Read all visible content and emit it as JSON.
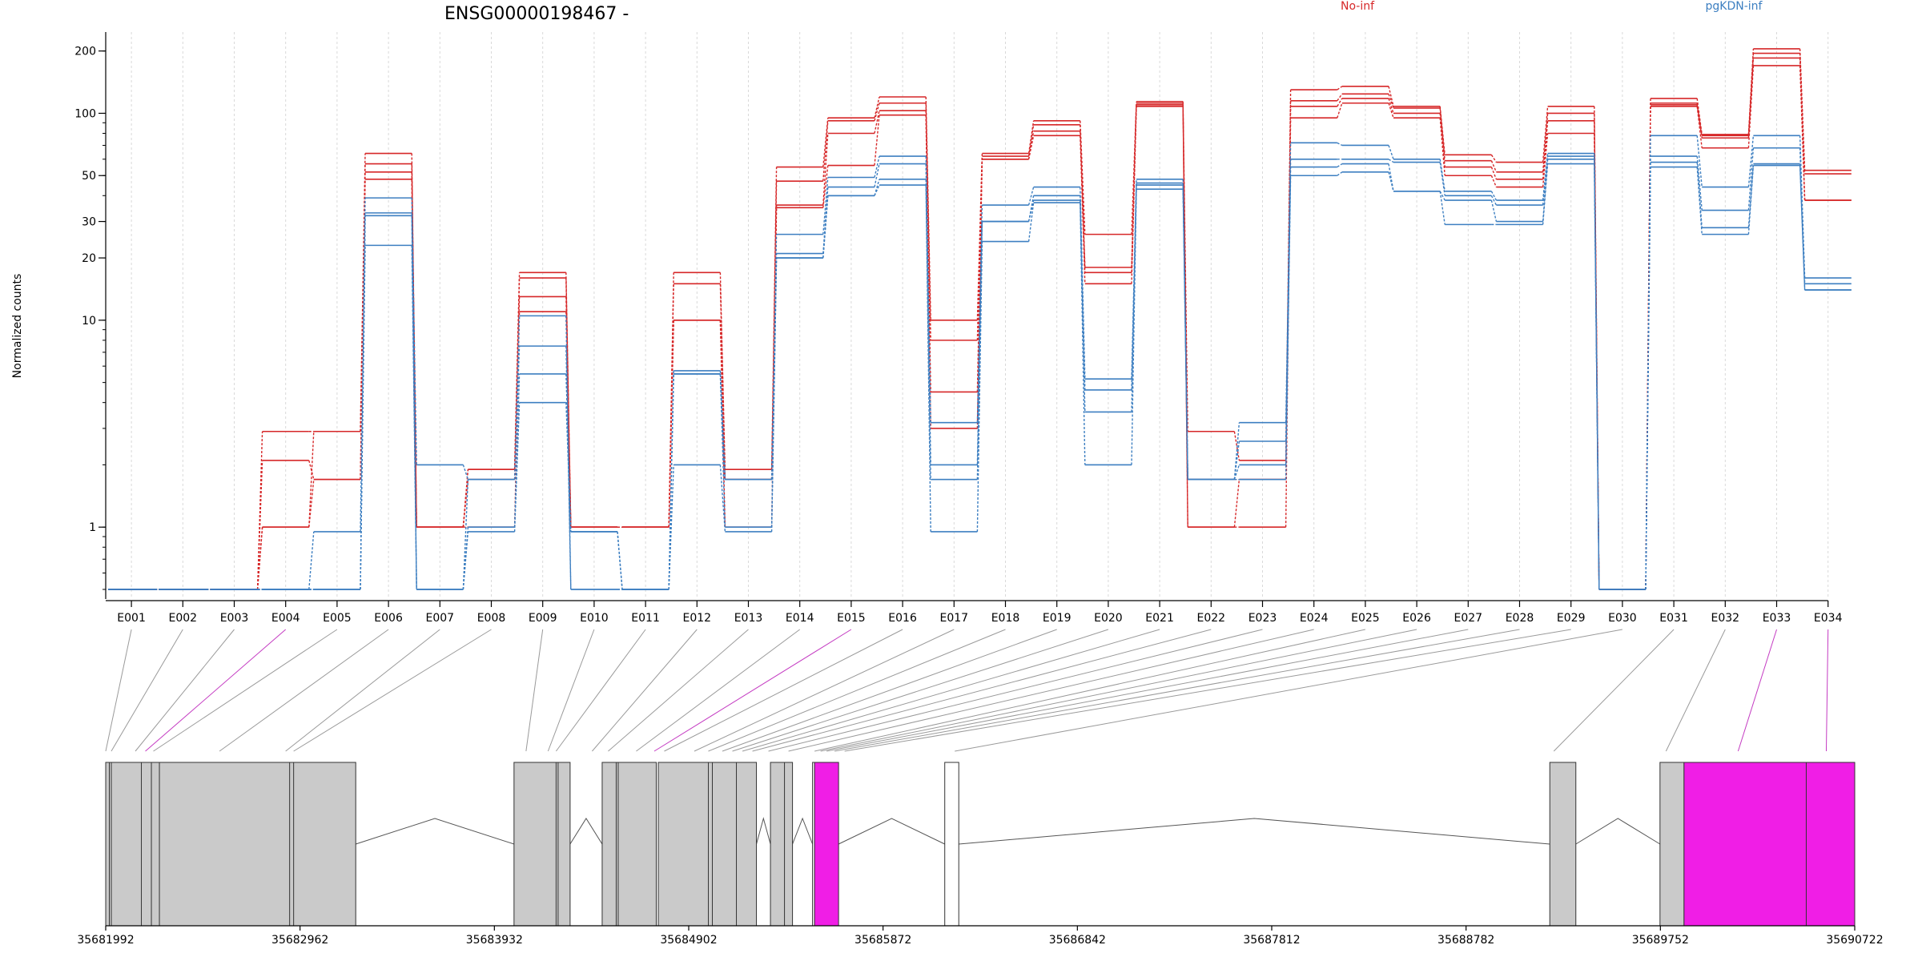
{
  "chart_data": {
    "type": "line",
    "title": "ENSG00000198467 -",
    "ylabel": "Normalized counts",
    "xlabel": "",
    "y_scale": "log",
    "ylim": [
      0.5,
      230
    ],
    "y_ticks": [
      1,
      10,
      20,
      30,
      50,
      100,
      200
    ],
    "grid": "vertical dotted",
    "legend_placement": "top",
    "colors": {
      "No-inf": "#d62728",
      "pgKDN-inf": "#3d7fc1",
      "highlight": "#f01ee6",
      "exon_fill": "#cacaca"
    },
    "categories": [
      "E001",
      "E002",
      "E003",
      "E004",
      "E005",
      "E006",
      "E007",
      "E008",
      "E009",
      "E010",
      "E011",
      "E012",
      "E013",
      "E014",
      "E015",
      "E016",
      "E017",
      "E018",
      "E019",
      "E020",
      "E021",
      "E022",
      "E023",
      "E024",
      "E025",
      "E026",
      "E027",
      "E028",
      "E029",
      "E030",
      "E031",
      "E032",
      "E033",
      "E034"
    ],
    "highlighted_bins": [
      "E004",
      "E015",
      "E033",
      "E034"
    ],
    "series": [
      {
        "name": "No-inf",
        "values": [
          0.5,
          0.5,
          0.5,
          2.9,
          2.9,
          64,
          1,
          1.9,
          17,
          1,
          1,
          17,
          1.9,
          55,
          95,
          120,
          10,
          64,
          92,
          26,
          114,
          2.9,
          2.1,
          130,
          135,
          108,
          63,
          58,
          108,
          0.5,
          118,
          79,
          205,
          53
        ]
      },
      {
        "name": "No-inf",
        "values": [
          0.5,
          0.5,
          0.5,
          2.1,
          1.7,
          57,
          1,
          1.9,
          16,
          1,
          1,
          15,
          1.7,
          47,
          92,
          112,
          8,
          62,
          88,
          18,
          112,
          1.7,
          1.7,
          115,
          124,
          106,
          59,
          52,
          100,
          0.5,
          112,
          78,
          195,
          51
        ]
      },
      {
        "name": "No-inf",
        "values": [
          0.5,
          0.5,
          0.5,
          1,
          2.9,
          52,
          1,
          1.7,
          13,
          1,
          1,
          10,
          1.7,
          36,
          80,
          103,
          4.5,
          60,
          82,
          17,
          110,
          1,
          1.7,
          108,
          118,
          100,
          55,
          48,
          92,
          0.5,
          110,
          76,
          185,
          38
        ]
      },
      {
        "name": "No-inf",
        "values": [
          0.5,
          0.5,
          0.5,
          1,
          1.7,
          48,
          1,
          1,
          11,
          1,
          1,
          10,
          1,
          35,
          56,
          98,
          3,
          60,
          78,
          15,
          108,
          1,
          1,
          95,
          112,
          95,
          50,
          44,
          80,
          0.5,
          108,
          68,
          170,
          38
        ]
      },
      {
        "name": "pgKDN-inf",
        "values": [
          0.5,
          0.5,
          0.5,
          0.5,
          0.95,
          39,
          2,
          1.7,
          10.5,
          0.5,
          0.5,
          5.7,
          1.7,
          26,
          49,
          62,
          3.2,
          36,
          44,
          5.2,
          48,
          1.7,
          3.2,
          72,
          70,
          60,
          42,
          38,
          64,
          0.5,
          78,
          44,
          78,
          16
        ]
      },
      {
        "name": "pgKDN-inf",
        "values": [
          0.5,
          0.5,
          0.5,
          0.5,
          0.5,
          33,
          0.5,
          1.7,
          7.5,
          0.5,
          0.5,
          5.5,
          1.7,
          21,
          44,
          57,
          2,
          30,
          40,
          4.6,
          46,
          1.7,
          2.6,
          60,
          60,
          58,
          40,
          36,
          62,
          0.5,
          62,
          34,
          68,
          15
        ]
      },
      {
        "name": "pgKDN-inf",
        "values": [
          0.5,
          0.5,
          0.5,
          0.5,
          0.5,
          32,
          0.5,
          1,
          5.5,
          0.95,
          0.5,
          5.5,
          1,
          20,
          40,
          48,
          1.7,
          30,
          38,
          3.6,
          45,
          1.7,
          2,
          55,
          57,
          42,
          38,
          30,
          60,
          0.5,
          58,
          28,
          57,
          14
        ]
      },
      {
        "name": "pgKDN-inf",
        "values": [
          0.5,
          0.5,
          0.5,
          0.5,
          0.5,
          23,
          0.5,
          0.95,
          4,
          0.95,
          0.5,
          2,
          0.95,
          20,
          40,
          45,
          0.95,
          24,
          37,
          2,
          43,
          1.7,
          1.7,
          50,
          52,
          42,
          29,
          29,
          57,
          0.5,
          55,
          26,
          56,
          14
        ]
      }
    ],
    "coordinate_ticks": [
      "35681992",
      "35682962",
      "35683932",
      "35684902",
      "35685872",
      "35686842",
      "35687812",
      "35688782",
      "35689752",
      "35690722"
    ],
    "genomic_range": [
      35681992,
      35690722
    ],
    "exons": [
      {
        "start": 35681992,
        "end": 35683240,
        "highlight": false
      },
      {
        "start": 35684030,
        "end": 35684310,
        "highlight": false
      },
      {
        "start": 35684470,
        "end": 35684740,
        "highlight": false
      },
      {
        "start": 35684750,
        "end": 35685240,
        "highlight": false
      },
      {
        "start": 35685310,
        "end": 35685420,
        "highlight": false
      },
      {
        "start": 35685520,
        "end": 35685530,
        "highlight": false
      },
      {
        "start": 35685530,
        "end": 35685650,
        "highlight": true
      },
      {
        "start": 35686180,
        "end": 35686250,
        "highlight": false
      },
      {
        "start": 35689200,
        "end": 35689330,
        "highlight": false
      },
      {
        "start": 35689750,
        "end": 35689870,
        "highlight": false
      },
      {
        "start": 35689870,
        "end": 35690722,
        "highlight": true
      }
    ],
    "exon_dividers": [
      35682010,
      35682020,
      35682170,
      35682220,
      35682260,
      35682910,
      35682930,
      35684240,
      35684250,
      35684540,
      35684550,
      35685000,
      35685020,
      35685140,
      35685380,
      35690480
    ],
    "bin_anchor_positions": [
      35681992,
      35682020,
      35682140,
      35682190,
      35682230,
      35682560,
      35682890,
      35682930,
      35684090,
      35684200,
      35684240,
      35684420,
      35684500,
      35684640,
      35684730,
      35684780,
      35684930,
      35685000,
      35685070,
      35685120,
      35685170,
      35685220,
      35685300,
      35685400,
      35685530,
      35685560,
      35685590,
      35685630,
      35685680,
      35686230,
      35689220,
      35689780,
      35690140,
      35690580
    ]
  }
}
